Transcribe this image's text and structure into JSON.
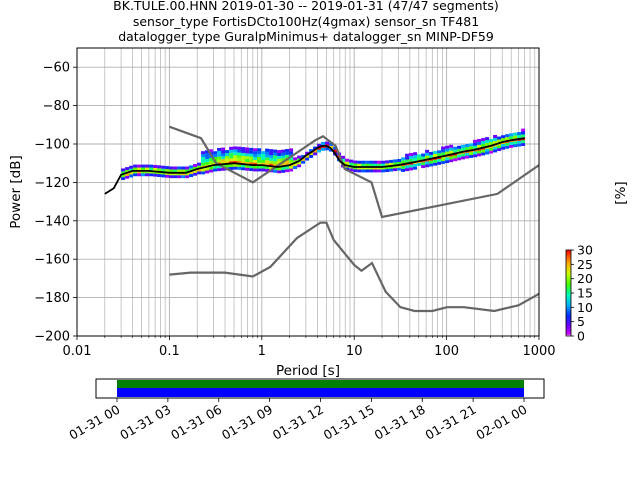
{
  "chart_data": {
    "type": "heatmap",
    "title_lines": [
      "BK.TULE.00.HNN   2019-01-30 -- 2019-01-31  (47/47 segments)",
      "sensor_type FortisDCto100Hz(4gmax) sensor_sn TF481",
      "datalogger_type GuralpMinimus+ datalogger_sn MINP-DF59"
    ],
    "xlabel": "Period [s]",
    "ylabel": "Power [dB]",
    "xscale": "log",
    "xlim": [
      0.01,
      1000
    ],
    "ylim": [
      -200,
      -50
    ],
    "grid": true,
    "x_ticks": [
      {
        "v": 0.01,
        "label": "0.01"
      },
      {
        "v": 0.1,
        "label": "0.1"
      },
      {
        "v": 1,
        "label": "1"
      },
      {
        "v": 10,
        "label": "10"
      },
      {
        "v": 100,
        "label": "100"
      },
      {
        "v": 1000,
        "label": "1000"
      }
    ],
    "y_ticks": [
      {
        "v": -60,
        "label": "−60"
      },
      {
        "v": -80,
        "label": "−80"
      },
      {
        "v": -100,
        "label": "−100"
      },
      {
        "v": -120,
        "label": "−120"
      },
      {
        "v": -140,
        "label": "−140"
      },
      {
        "v": -160,
        "label": "−160"
      },
      {
        "v": -180,
        "label": "−180"
      },
      {
        "v": -200,
        "label": "−200"
      }
    ],
    "mode_curve": {
      "x": [
        0.02,
        0.025,
        0.03,
        0.04,
        0.06,
        0.1,
        0.15,
        0.2,
        0.3,
        0.5,
        0.8,
        1.0,
        1.5,
        2,
        2.5,
        3,
        3.5,
        4,
        4.5,
        5,
        5.5,
        6,
        7,
        8,
        10,
        15,
        20,
        30,
        50,
        80,
        100,
        150,
        200,
        300,
        400,
        500,
        700
      ],
      "y": [
        -126,
        -123,
        -116,
        -114,
        -114,
        -115,
        -115,
        -113,
        -111,
        -110,
        -111,
        -111,
        -112,
        -111,
        -109,
        -106,
        -104,
        -102,
        -101,
        -101,
        -102,
        -104,
        -109,
        -111,
        -112,
        -112,
        -112,
        -111,
        -109,
        -107,
        -106,
        -104,
        -103,
        -101,
        -99,
        -98,
        -97
      ]
    },
    "nhnm": {
      "x": [
        0.1,
        0.22,
        0.32,
        0.8,
        3.8,
        4.6,
        6.3,
        7.9,
        15.4,
        20,
        354.8,
        1000
      ],
      "y": [
        -91,
        -97,
        -110,
        -120,
        -98,
        -96,
        -101,
        -113,
        -120,
        -138,
        -126,
        -111
      ]
    },
    "nlnm": {
      "x": [
        0.1,
        0.17,
        0.4,
        0.8,
        1.24,
        2.4,
        4.3,
        5,
        6,
        10,
        12,
        15.6,
        21.9,
        31.6,
        45,
        70,
        101,
        154,
        328,
        600,
        1000
      ],
      "y": [
        -168,
        -167,
        -167,
        -169,
        -164,
        -149,
        -141,
        -141,
        -150,
        -163,
        -166,
        -162,
        -177,
        -185,
        -187,
        -187,
        -185,
        -185,
        -187,
        -184,
        -178
      ]
    },
    "colorbar": {
      "label": "[%]",
      "range": [
        0,
        30
      ],
      "ticks": [
        {
          "v": 0,
          "label": "0"
        },
        {
          "v": 5,
          "label": "5"
        },
        {
          "v": 10,
          "label": "10"
        },
        {
          "v": 15,
          "label": "15"
        },
        {
          "v": 20,
          "label": "20"
        },
        {
          "v": 25,
          "label": "25"
        },
        {
          "v": 30,
          "label": "30"
        }
      ]
    },
    "timeline": {
      "tick_labels": [
        "01-31 00",
        "01-31 03",
        "01-31 06",
        "01-31 09",
        "01-31 12",
        "01-31 15",
        "01-31 18",
        "01-31 21",
        "02-01 00"
      ],
      "data_color": "#008000",
      "used_color": "#0000ff"
    }
  }
}
